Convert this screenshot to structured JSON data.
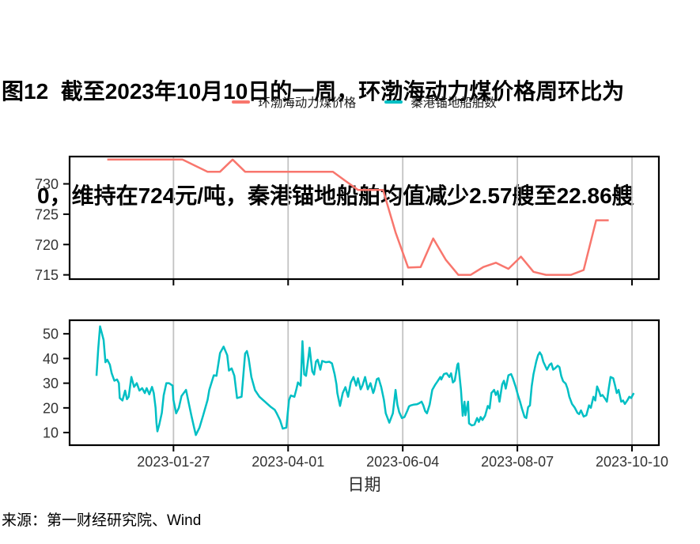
{
  "figure": {
    "title_line1": "图12  截至2023年10月10日的一周，环渤海动力煤价格周环比为",
    "title_line2": "0，维持在724元/吨，秦港锚地船舶均值减少2.57艘至22.86艘",
    "x_axis_title": "日期",
    "source": "来源：第一财经研究院、Wind"
  },
  "legend": {
    "items": [
      {
        "label": "环渤海动力煤价格",
        "color": "#F8766D"
      },
      {
        "label": "秦港锚地船舶数",
        "color": "#00BFC4"
      }
    ]
  },
  "x_axis": {
    "unit": "days since 2022-11-30",
    "domain": [
      0,
      329
    ],
    "ticks": [
      {
        "day": 58,
        "label": "2023-01-27"
      },
      {
        "day": 122,
        "label": "2023-04-01"
      },
      {
        "day": 186,
        "label": "2023-06-04"
      },
      {
        "day": 250,
        "label": "2023-08-07"
      },
      {
        "day": 314,
        "label": "2023-10-10"
      }
    ]
  },
  "chart_data": [
    {
      "type": "line",
      "name": "环渤海动力煤价格",
      "panel": "top",
      "color": "#F8766D",
      "unit": "元/吨",
      "frequency": "weekly",
      "ylim": [
        714.3,
        734.5
      ],
      "y_ticks": [
        715,
        720,
        725,
        730
      ],
      "grid": "vertical-only",
      "points": [
        [
          21,
          734
        ],
        [
          28,
          734
        ],
        [
          35,
          734
        ],
        [
          42,
          734
        ],
        [
          49,
          734
        ],
        [
          56,
          734
        ],
        [
          63,
          734
        ],
        [
          70,
          733
        ],
        [
          77,
          732
        ],
        [
          84,
          732
        ],
        [
          91,
          734
        ],
        [
          98,
          732
        ],
        [
          105,
          732
        ],
        [
          112,
          732
        ],
        [
          119,
          732
        ],
        [
          126,
          732
        ],
        [
          133,
          732
        ],
        [
          140,
          732
        ],
        [
          147,
          732
        ],
        [
          154,
          730.5
        ],
        [
          161,
          729
        ],
        [
          168,
          729
        ],
        [
          175,
          729
        ],
        [
          182,
          722
        ],
        [
          189,
          716.2
        ],
        [
          196,
          716.3
        ],
        [
          203,
          721
        ],
        [
          210,
          717.5
        ],
        [
          217,
          715
        ],
        [
          224,
          715
        ],
        [
          231,
          716.3
        ],
        [
          238,
          717
        ],
        [
          245,
          716
        ],
        [
          252,
          718
        ],
        [
          259,
          715.5
        ],
        [
          266,
          715
        ],
        [
          273,
          715
        ],
        [
          280,
          715
        ],
        [
          287,
          715.8
        ],
        [
          294,
          724
        ],
        [
          301,
          724
        ]
      ]
    },
    {
      "type": "line",
      "name": "秦港锚地船舶数",
      "panel": "bottom",
      "color": "#00BFC4",
      "unit": "艘",
      "frequency": "daily",
      "ylim": [
        4.9,
        55.5
      ],
      "y_ticks": [
        10,
        20,
        30,
        40,
        50
      ],
      "grid": "vertical-only",
      "points": [
        [
          15,
          33
        ],
        [
          16,
          44
        ],
        [
          17,
          53
        ],
        [
          19,
          47.5
        ],
        [
          20,
          38.5
        ],
        [
          21,
          39.5
        ],
        [
          22.5,
          37.5
        ],
        [
          23.5,
          34
        ],
        [
          25,
          31
        ],
        [
          26.5,
          31.5
        ],
        [
          27.5,
          30
        ],
        [
          28,
          24
        ],
        [
          29.5,
          23
        ],
        [
          31,
          27
        ],
        [
          32,
          23.5
        ],
        [
          33,
          24.5
        ],
        [
          34.5,
          32.5
        ],
        [
          36,
          28.5
        ],
        [
          37.5,
          30
        ],
        [
          39,
          27
        ],
        [
          40.5,
          28
        ],
        [
          42,
          26
        ],
        [
          43,
          28
        ],
        [
          44.5,
          25.5
        ],
        [
          46,
          28.5
        ],
        [
          47,
          26
        ],
        [
          48,
          20
        ],
        [
          48.5,
          14
        ],
        [
          49,
          10.5
        ],
        [
          50,
          13
        ],
        [
          51.5,
          18
        ],
        [
          52.5,
          25
        ],
        [
          54,
          30
        ],
        [
          55.5,
          30
        ],
        [
          57.5,
          29
        ],
        [
          58,
          23.2
        ],
        [
          59.5,
          17.8
        ],
        [
          61,
          20
        ],
        [
          62.5,
          24.8
        ],
        [
          65,
          27.3
        ],
        [
          66.5,
          22
        ],
        [
          68,
          16.8
        ],
        [
          69.5,
          12
        ],
        [
          70.5,
          9
        ],
        [
          72.5,
          12
        ],
        [
          74.5,
          16.8
        ],
        [
          77,
          23.2
        ],
        [
          78,
          27.3
        ],
        [
          80.5,
          33.2
        ],
        [
          82,
          33
        ],
        [
          84,
          42.2
        ],
        [
          86,
          44.8
        ],
        [
          88,
          41.3
        ],
        [
          89,
          35.1
        ],
        [
          90.5,
          36
        ],
        [
          92,
          33
        ],
        [
          93.5,
          24
        ],
        [
          96,
          24.5
        ],
        [
          98,
          42
        ],
        [
          99,
          43
        ],
        [
          100,
          40
        ],
        [
          101.5,
          32.5
        ],
        [
          103.5,
          27.2
        ],
        [
          106,
          24.5
        ],
        [
          108,
          23.2
        ],
        [
          110.5,
          21.6
        ],
        [
          112.5,
          20.3
        ],
        [
          114.5,
          19.2
        ],
        [
          115.5,
          18
        ],
        [
          117.5,
          15
        ],
        [
          119,
          11.6
        ],
        [
          121,
          12
        ],
        [
          122.5,
          23.2
        ],
        [
          123.5,
          25
        ],
        [
          125.5,
          24.5
        ],
        [
          126.5,
          27.3
        ],
        [
          127.5,
          30.3
        ],
        [
          129,
          29
        ],
        [
          130,
          47
        ],
        [
          131,
          33.6
        ],
        [
          132,
          33
        ],
        [
          133.5,
          41.3
        ],
        [
          134,
          44.4
        ],
        [
          135.5,
          34.8
        ],
        [
          136.5,
          33.5
        ],
        [
          137.5,
          38.7
        ],
        [
          138.5,
          39.5
        ],
        [
          140,
          35.5
        ],
        [
          141,
          39
        ],
        [
          143,
          38.5
        ],
        [
          145,
          38.7
        ],
        [
          146.5,
          38
        ],
        [
          148,
          33.6
        ],
        [
          149,
          29.5
        ],
        [
          149.5,
          26
        ],
        [
          151,
          20.8
        ],
        [
          152.5,
          26
        ],
        [
          154,
          28.4
        ],
        [
          155.5,
          24.5
        ],
        [
          157,
          30.3
        ],
        [
          158.5,
          32.5
        ],
        [
          160,
          29
        ],
        [
          161,
          32
        ],
        [
          162.5,
          27.5
        ],
        [
          163.5,
          29
        ],
        [
          165,
          32.5
        ],
        [
          166.5,
          27.5
        ],
        [
          168,
          30
        ],
        [
          169.5,
          26
        ],
        [
          170,
          27
        ],
        [
          171.5,
          31.6
        ],
        [
          172.5,
          32
        ],
        [
          174,
          28.4
        ],
        [
          175.5,
          23.2
        ],
        [
          176.5,
          17.8
        ],
        [
          178.5,
          14
        ],
        [
          180.5,
          17.8
        ],
        [
          182,
          27.3
        ],
        [
          183,
          21.3
        ],
        [
          184,
          18.3
        ],
        [
          185.5,
          15.9
        ],
        [
          187,
          16.3
        ],
        [
          188.5,
          18.7
        ],
        [
          189.5,
          20.6
        ],
        [
          190.5,
          21
        ],
        [
          192,
          21.3
        ],
        [
          194,
          21.5
        ],
        [
          195,
          21.8
        ],
        [
          196.5,
          22.5
        ],
        [
          197.5,
          21
        ],
        [
          198.5,
          18.7
        ],
        [
          199.5,
          17.8
        ],
        [
          201,
          21.3
        ],
        [
          202.5,
          27.3
        ],
        [
          204,
          29.2
        ],
        [
          205.5,
          30.8
        ],
        [
          207,
          32.5
        ],
        [
          207.5,
          31.5
        ],
        [
          209,
          33.7
        ],
        [
          210.5,
          34
        ],
        [
          212,
          32.5
        ],
        [
          213,
          34
        ],
        [
          214,
          30.3
        ],
        [
          215,
          31
        ],
        [
          216.5,
          37.5
        ],
        [
          217,
          38
        ],
        [
          218.5,
          27.3
        ],
        [
          219.5,
          16.8
        ],
        [
          220.5,
          22.5
        ],
        [
          221,
          17
        ],
        [
          222.5,
          22.5
        ],
        [
          223,
          13.7
        ],
        [
          224.5,
          12.9
        ],
        [
          226,
          13.2
        ],
        [
          227.5,
          15.9
        ],
        [
          228.5,
          14.3
        ],
        [
          229.5,
          16.3
        ],
        [
          230.5,
          15.1
        ],
        [
          232,
          16.8
        ],
        [
          233.5,
          20.8
        ],
        [
          234.5,
          19.8
        ],
        [
          235.5,
          26
        ],
        [
          237,
          27.3
        ],
        [
          238,
          25.2
        ],
        [
          239,
          26.8
        ],
        [
          240,
          22.5
        ],
        [
          241.5,
          29.5
        ],
        [
          242.5,
          31
        ],
        [
          243.5,
          27.8
        ],
        [
          245,
          33.2
        ],
        [
          246.5,
          33.7
        ],
        [
          247.5,
          32
        ],
        [
          249,
          28.7
        ],
        [
          250.5,
          24.8
        ],
        [
          251.5,
          22.5
        ],
        [
          252.5,
          19.8
        ],
        [
          254,
          16.3
        ],
        [
          255,
          15.9
        ],
        [
          256,
          20.3
        ],
        [
          257,
          21
        ],
        [
          258,
          28.7
        ],
        [
          259,
          33.7
        ],
        [
          260.5,
          38.7
        ],
        [
          261.5,
          41.3
        ],
        [
          262.5,
          42.5
        ],
        [
          263.5,
          41.3
        ],
        [
          264.5,
          38.7
        ],
        [
          265.5,
          37.1
        ],
        [
          266.5,
          35.5
        ],
        [
          268,
          37.5
        ],
        [
          269,
          38
        ],
        [
          270,
          35.5
        ],
        [
          271,
          36
        ],
        [
          272.5,
          37.1
        ],
        [
          273.5,
          36.5
        ],
        [
          274.5,
          32.9
        ],
        [
          275.5,
          30.8
        ],
        [
          277,
          29.8
        ],
        [
          278,
          27.8
        ],
        [
          279,
          24.5
        ],
        [
          280.5,
          21.6
        ],
        [
          282,
          20.1
        ],
        [
          283.5,
          18
        ],
        [
          284.5,
          17.5
        ],
        [
          285.5,
          19
        ],
        [
          287,
          16.5
        ],
        [
          288.5,
          17
        ],
        [
          290,
          21
        ],
        [
          291,
          20
        ],
        [
          292.5,
          24.5
        ],
        [
          293.5,
          23
        ],
        [
          294.5,
          28.7
        ],
        [
          295.5,
          27
        ],
        [
          296.5,
          24.8
        ],
        [
          297.5,
          25.2
        ],
        [
          299,
          23.7
        ],
        [
          300,
          22.5
        ],
        [
          301,
          27.8
        ],
        [
          302,
          32.5
        ],
        [
          303.5,
          32
        ],
        [
          304.5,
          29.2
        ],
        [
          305.5,
          26
        ],
        [
          306.5,
          27.3
        ],
        [
          308,
          22.5
        ],
        [
          309,
          23
        ],
        [
          310,
          21.6
        ],
        [
          311.5,
          23.2
        ],
        [
          312.5,
          24.5
        ],
        [
          313.5,
          24
        ],
        [
          315,
          26
        ]
      ]
    }
  ],
  "style": {
    "gridline_color": "#c3c3c3",
    "axis_text_color": "#333333",
    "panel_border_color": "#000000"
  }
}
